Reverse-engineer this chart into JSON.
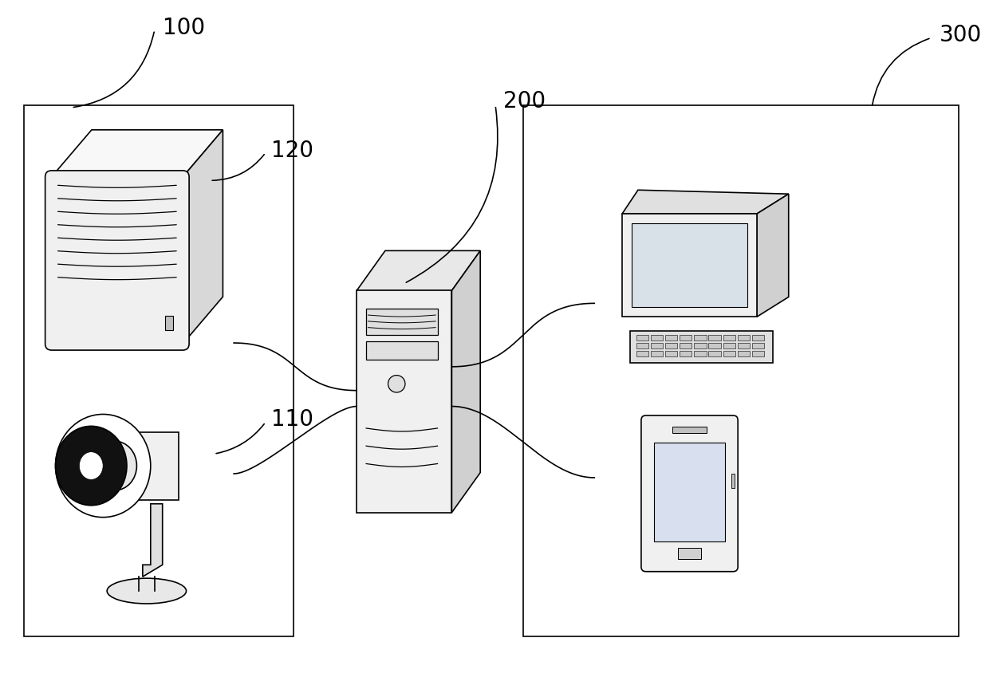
{
  "bg_color": "#ffffff",
  "line_color": "#000000",
  "lw": 1.2,
  "label_100": "100",
  "label_110": "110",
  "label_120": "120",
  "label_200": "200",
  "label_300": "300",
  "figsize": [
    12.4,
    8.69
  ],
  "gray_light": "#f0f0f0",
  "gray_mid": "#d8d8d8",
  "gray_dark": "#b0b0b0",
  "gray_shadow": "#e0e0e0"
}
